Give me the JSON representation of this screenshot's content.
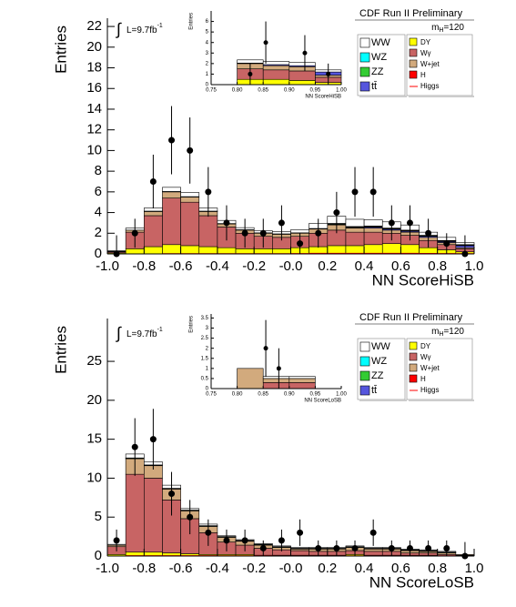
{
  "chart_data": [
    {
      "type": "histogram",
      "title": "CDF Run II Preliminary",
      "mass_label": [
        "m",
        "H",
        "=120"
      ],
      "lumi_label": [
        "∫",
        "L=9.7fb",
        "-1"
      ],
      "x_label": "NN ScoreHiSB",
      "y_label": "Entries",
      "bins": [
        -1.0,
        -0.9,
        -0.8,
        -0.7,
        -0.6,
        -0.5,
        -0.4,
        -0.3,
        -0.2,
        -0.1,
        0,
        0.1,
        0.2,
        0.3,
        0.4,
        0.5,
        0.6,
        0.7,
        0.8,
        0.9,
        1.0
      ],
      "xlim": [
        -1.0,
        1.0
      ],
      "ylim": [
        0,
        22.8
      ],
      "xticks": [
        {
          "value": -1,
          "label": "-1.0"
        },
        -0.8,
        -0.6,
        -0.4,
        -0.2,
        {
          "value": 0,
          "label": "-0.0"
        },
        0.2,
        0.4,
        0.6,
        0.8,
        {
          "value": 1,
          "label": "1.0"
        }
      ],
      "yticks": [
        0,
        2,
        4,
        6,
        8,
        10,
        12,
        14,
        16,
        18,
        20,
        22
      ],
      "legend": true,
      "series": [
        {
          "name": "DY",
          "color": "#ffff00",
          "values": [
            0.1,
            0.5,
            0.7,
            0.9,
            0.8,
            0.7,
            0.6,
            0.5,
            0.5,
            0.5,
            0.6,
            0.7,
            0.8,
            0.8,
            0.9,
            1.0,
            0.9,
            0.6,
            0.4,
            0.2
          ]
        },
        {
          "name": "Wγ",
          "color": "#c86464",
          "values": [
            0.1,
            1.6,
            3.0,
            4.5,
            4.2,
            3.0,
            2.0,
            1.5,
            1.2,
            1.1,
            1.1,
            1.3,
            1.5,
            1.3,
            1.2,
            1.0,
            0.9,
            0.7,
            0.5,
            0.3
          ]
        },
        {
          "name": "W+jet",
          "color": "#d2aa7d",
          "values": [
            0.05,
            0.2,
            0.4,
            0.6,
            0.5,
            0.4,
            0.3,
            0.3,
            0.3,
            0.3,
            0.3,
            0.4,
            0.5,
            0.4,
            0.4,
            0.3,
            0.3,
            0.3,
            0.2,
            0.1
          ]
        },
        {
          "name": "H",
          "color": "#ff0000",
          "values": [
            0,
            0,
            0,
            0,
            0,
            0,
            0,
            0,
            0,
            0,
            0,
            0,
            0,
            0,
            0,
            0,
            0,
            0,
            0,
            0
          ]
        },
        {
          "name": "tt̄",
          "color": "#5555dd",
          "values": [
            0,
            0,
            0,
            0,
            0,
            0,
            0,
            0,
            0,
            0,
            0,
            0,
            0.05,
            0.05,
            0.1,
            0.1,
            0.1,
            0.1,
            0.1,
            0.2
          ]
        },
        {
          "name": "ZZ",
          "color": "#33cc33",
          "values": [
            0,
            0,
            0.02,
            0.02,
            0.02,
            0.02,
            0.02,
            0.02,
            0.02,
            0.02,
            0.02,
            0.03,
            0.05,
            0.05,
            0.05,
            0.05,
            0.05,
            0.05,
            0.05,
            0.05
          ]
        },
        {
          "name": "WZ",
          "color": "#00ffff",
          "values": [
            0,
            0,
            0.02,
            0.02,
            0.02,
            0.02,
            0.02,
            0.02,
            0.02,
            0.02,
            0.02,
            0.03,
            0.05,
            0.05,
            0.05,
            0.05,
            0.05,
            0.05,
            0.05,
            0.05
          ]
        },
        {
          "name": "WW",
          "color": "#ffffff",
          "values": [
            0.05,
            0.2,
            0.3,
            0.4,
            0.4,
            0.3,
            0.3,
            0.2,
            0.2,
            0.2,
            0.3,
            0.5,
            0.7,
            0.7,
            0.6,
            0.6,
            0.5,
            0.3,
            0.3,
            0.2
          ]
        },
        {
          "name": "Higgs",
          "color": "#ff0000",
          "line": true,
          "values": [
            0,
            0,
            0,
            0.02,
            0.02,
            0.02,
            0.02,
            0.02,
            0.02,
            0.02,
            0.03,
            0.05,
            0.06,
            0.06,
            0.06,
            0.06,
            0.05,
            0.04,
            0.03,
            0.02
          ]
        }
      ],
      "data": {
        "x": [
          -0.95,
          -0.85,
          -0.75,
          -0.65,
          -0.55,
          -0.45,
          -0.35,
          -0.25,
          -0.15,
          -0.05,
          0.05,
          0.15,
          0.25,
          0.35,
          0.45,
          0.55,
          0.65,
          0.75,
          0.85,
          0.95
        ],
        "values": [
          0,
          2,
          7,
          11,
          10,
          6,
          3,
          2,
          2,
          3,
          1,
          2,
          4,
          6,
          6,
          3,
          3,
          2,
          1,
          0
        ],
        "errors": [
          1.8,
          1.4,
          2.6,
          3.3,
          3.2,
          2.4,
          1.7,
          1.4,
          1.4,
          1.7,
          1,
          1.4,
          2,
          2.4,
          2.4,
          1.7,
          1.7,
          1.4,
          1,
          1.8
        ]
      }
    },
    {
      "type": "histogram",
      "x_label": "NN ScoreHiSB",
      "y_label": "Entries",
      "bins": [
        0.75,
        0.8,
        0.85,
        0.9,
        0.95,
        1.0
      ],
      "xlim": [
        0.75,
        1.0
      ],
      "ylim": [
        0,
        7
      ],
      "xticks": [
        0.75,
        {
          "value": 0.8,
          "label": "0.80"
        },
        0.85,
        {
          "value": 0.9,
          "label": "0.90"
        },
        0.95,
        {
          "value": 1,
          "label": "1.00"
        }
      ],
      "yticks": [
        0,
        1,
        2,
        3,
        4,
        5,
        6
      ],
      "series": [
        {
          "name": "DY",
          "color": "#ffff00",
          "values": [
            0,
            0.5,
            0.5,
            0.4,
            0.2
          ]
        },
        {
          "name": "Wγ",
          "color": "#c86464",
          "values": [
            0,
            1.0,
            0.9,
            0.9,
            0.5
          ]
        },
        {
          "name": "W+jet",
          "color": "#d2aa7d",
          "values": [
            0,
            0.5,
            0.4,
            0.4,
            0.2
          ]
        },
        {
          "name": "tt̄",
          "color": "#5555dd",
          "values": [
            0,
            0.05,
            0.1,
            0.1,
            0.3
          ]
        },
        {
          "name": "WW",
          "color": "#ffffff",
          "values": [
            0,
            0.3,
            0.3,
            0.3,
            0.2
          ]
        }
      ],
      "data": {
        "x": [
          0.825,
          0.855,
          0.93,
          0.975
        ],
        "values": [
          1,
          4,
          3,
          1
        ],
        "errors": [
          1,
          2,
          1.7,
          1
        ]
      }
    },
    {
      "type": "histogram",
      "title": "CDF Run II Preliminary",
      "mass_label": [
        "m",
        "H",
        "=120"
      ],
      "lumi_label": [
        "∫",
        "L=9.7fb",
        "-1"
      ],
      "x_label": "NN ScoreLoSB",
      "y_label": "Entries",
      "bins": [
        -1.0,
        -0.9,
        -0.8,
        -0.7,
        -0.6,
        -0.5,
        -0.4,
        -0.3,
        -0.2,
        -0.1,
        0,
        0.1,
        0.2,
        0.3,
        0.4,
        0.5,
        0.6,
        0.7,
        0.8,
        0.9,
        1.0
      ],
      "xlim": [
        -1.0,
        1.0
      ],
      "ylim": [
        0,
        30.5
      ],
      "xticks": [
        {
          "value": -1,
          "label": "-1.0"
        },
        -0.8,
        -0.6,
        -0.4,
        -0.2,
        {
          "value": 0,
          "label": "-0.0"
        },
        0.2,
        0.4,
        0.6,
        0.8,
        {
          "value": 1,
          "label": "1.0"
        }
      ],
      "yticks": [
        0,
        5,
        10,
        15,
        20,
        25
      ],
      "legend": true,
      "series": [
        {
          "name": "DY",
          "color": "#ffff00",
          "values": [
            0.2,
            0.5,
            0.5,
            0.4,
            0.3,
            0.2,
            0.2,
            0.2,
            0.1,
            0.1,
            0.1,
            0.1,
            0.1,
            0.2,
            0.1,
            0.1,
            0.1,
            0.1,
            0,
            0
          ]
        },
        {
          "name": "Wγ",
          "color": "#c86464",
          "values": [
            1.0,
            10,
            9.5,
            6.8,
            4.5,
            2.8,
            1.6,
            1.2,
            0.9,
            0.7,
            0.6,
            0.5,
            0.5,
            0.5,
            0.5,
            0.5,
            0.3,
            0.3,
            0.2,
            0.1
          ]
        },
        {
          "name": "W+jet",
          "color": "#d2aa7d",
          "values": [
            0.2,
            2,
            1.6,
            1.4,
            1,
            0.8,
            0.6,
            0.5,
            0.4,
            0.3,
            0.2,
            0.3,
            0.3,
            0.4,
            0.3,
            0.3,
            0.3,
            0.2,
            0.2,
            0.1
          ]
        },
        {
          "name": "H",
          "color": "#ff0000",
          "values": [
            0,
            0,
            0,
            0,
            0,
            0,
            0,
            0,
            0,
            0,
            0,
            0,
            0,
            0,
            0,
            0,
            0,
            0,
            0,
            0
          ]
        },
        {
          "name": "tt̄",
          "color": "#5555dd",
          "values": [
            0,
            0,
            0,
            0,
            0,
            0,
            0,
            0,
            0,
            0,
            0,
            0,
            0,
            0,
            0,
            0,
            0,
            0,
            0,
            0
          ]
        },
        {
          "name": "ZZ",
          "color": "#33cc33",
          "values": [
            0,
            0.05,
            0.05,
            0.05,
            0.05,
            0.05,
            0.05,
            0.05,
            0.05,
            0.05,
            0.05,
            0.05,
            0.05,
            0.05,
            0.05,
            0.05,
            0.05,
            0.05,
            0.05,
            0
          ]
        },
        {
          "name": "WZ",
          "color": "#00ffff",
          "values": [
            0,
            0.05,
            0.05,
            0.05,
            0.05,
            0.05,
            0.05,
            0.05,
            0.05,
            0.05,
            0.05,
            0.05,
            0.05,
            0.05,
            0.05,
            0.05,
            0.05,
            0.05,
            0.05,
            0
          ]
        },
        {
          "name": "WW",
          "color": "#ffffff",
          "values": [
            0.1,
            0.5,
            0.4,
            0.4,
            0.2,
            0.2,
            0.1,
            0.1,
            0.1,
            0.1,
            0.1,
            0.1,
            0.1,
            0.1,
            0.1,
            0.1,
            0.1,
            0.1,
            0.1,
            0
          ]
        },
        {
          "name": "Higgs",
          "color": "#ff0000",
          "line": true,
          "values": [
            0,
            0.05,
            0.05,
            0.05,
            0.05,
            0.04,
            0.03,
            0.03,
            0.03,
            0.02,
            0.02,
            0.02,
            0.02,
            0.02,
            0.02,
            0.02,
            0.02,
            0.02,
            0.01,
            0
          ]
        }
      ],
      "data": {
        "x": [
          -0.95,
          -0.85,
          -0.75,
          -0.65,
          -0.55,
          -0.45,
          -0.35,
          -0.25,
          -0.15,
          -0.05,
          0.05,
          0.15,
          0.25,
          0.35,
          0.45,
          0.55,
          0.65,
          0.75,
          0.85,
          0.95
        ],
        "values": [
          2,
          14,
          15,
          8,
          5,
          3,
          2,
          2,
          1,
          2,
          3,
          1,
          1,
          1,
          3,
          1,
          1,
          1,
          1,
          0
        ],
        "errors": [
          1.4,
          3.7,
          3.9,
          2.8,
          2.2,
          1.7,
          1.4,
          1.4,
          1,
          1.4,
          1.7,
          1,
          1,
          1,
          1.7,
          1,
          1,
          1,
          1,
          1.8
        ]
      }
    },
    {
      "type": "histogram",
      "x_label": "NN ScoreLoSB",
      "y_label": "Entries",
      "bins": [
        0.75,
        0.8,
        0.85,
        0.9,
        0.95,
        1.0
      ],
      "xlim": [
        0.75,
        1.0
      ],
      "ylim": [
        0,
        3.7
      ],
      "xticks": [
        0.75,
        {
          "value": 0.8,
          "label": "0.80"
        },
        0.85,
        {
          "value": 0.9,
          "label": "0.90"
        },
        0.95,
        {
          "value": 1,
          "label": "1.00"
        }
      ],
      "yticks": [
        0,
        0.5,
        1,
        1.5,
        2,
        2.5,
        3,
        3.5
      ],
      "series": [
        {
          "name": "DY",
          "color": "#ffff00",
          "values": [
            0,
            0,
            0,
            0,
            0
          ]
        },
        {
          "name": "Wγ",
          "color": "#c86464",
          "values": [
            0,
            0,
            0.3,
            0.3,
            0
          ]
        },
        {
          "name": "W+jet",
          "color": "#d2aa7d",
          "values": [
            0,
            1.0,
            0.2,
            0.2,
            0
          ]
        },
        {
          "name": "tt̄",
          "color": "#5555dd",
          "values": [
            0,
            0,
            0,
            0,
            0
          ]
        },
        {
          "name": "WW",
          "color": "#ffffff",
          "values": [
            0,
            0,
            0.1,
            0.1,
            0
          ]
        }
      ],
      "data": {
        "x": [
          0.855,
          0.88
        ],
        "values": [
          2,
          1
        ],
        "errors": [
          1.4,
          1
        ]
      }
    }
  ]
}
